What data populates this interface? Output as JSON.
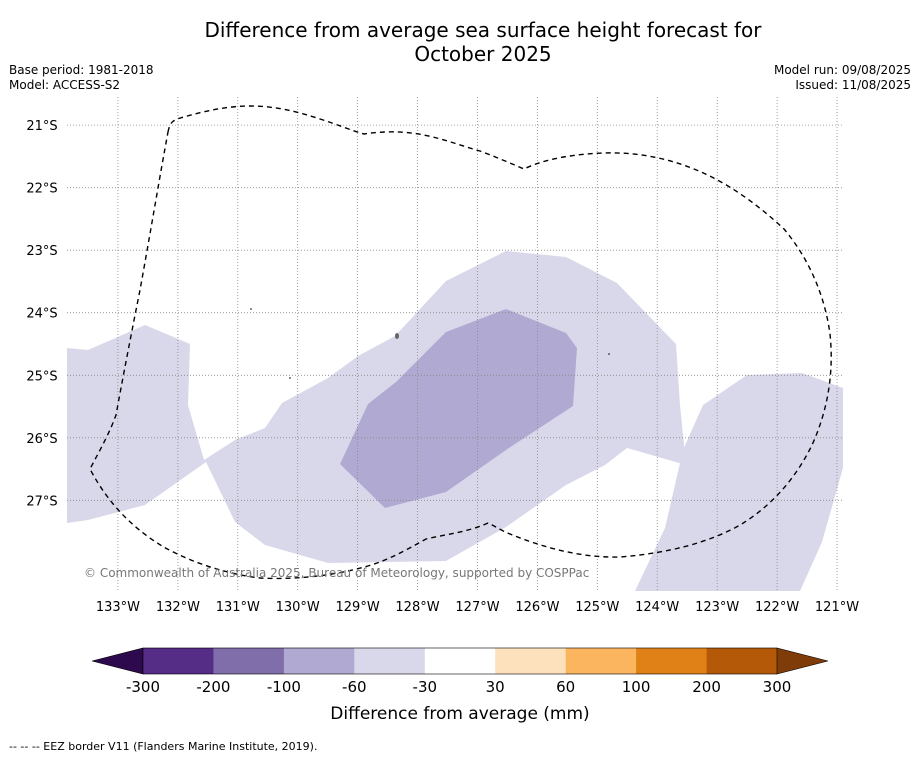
{
  "title": "Difference from average sea surface height forecast for\nOctober 2025",
  "base_period": "Base period: 1981-2018",
  "model": "Model: ACCESS-S2",
  "model_run": "Model run: 09/08/2025",
  "issued": "Issued: 11/08/2025",
  "copyright": "© Commonwealth of Australia 2025, Bureau of Meteorology, supported by COSPPac",
  "footnote": "--  --  -- EEZ border V11 (Flanders Marine Institute, 2019).",
  "map": {
    "lon_range": [
      -133.85,
      -120.9
    ],
    "lat_range": [
      -28.45,
      -20.55
    ],
    "lon_ticks": [
      {
        "value": -133,
        "label": "133°W"
      },
      {
        "value": -132,
        "label": "132°W"
      },
      {
        "value": -131,
        "label": "131°W"
      },
      {
        "value": -130,
        "label": "130°W"
      },
      {
        "value": -129,
        "label": "129°W"
      },
      {
        "value": -128,
        "label": "128°W"
      },
      {
        "value": -127,
        "label": "127°W"
      },
      {
        "value": -126,
        "label": "126°W"
      },
      {
        "value": -125,
        "label": "125°W"
      },
      {
        "value": -124,
        "label": "124°W"
      },
      {
        "value": -123,
        "label": "123°W"
      },
      {
        "value": -122,
        "label": "122°W"
      },
      {
        "value": -121,
        "label": "121°W"
      }
    ],
    "lat_ticks": [
      {
        "value": -21,
        "label": "21°S"
      },
      {
        "value": -22,
        "label": "22°S"
      },
      {
        "value": -23,
        "label": "23°S"
      },
      {
        "value": -24,
        "label": "24°S"
      },
      {
        "value": -25,
        "label": "25°S"
      },
      {
        "value": -26,
        "label": "26°S"
      },
      {
        "value": -27,
        "label": "27°S"
      }
    ],
    "grid": true,
    "colors": {
      "band_light": "#d9d8ea",
      "band_medium": "#b0a9d2",
      "eez_border": "#000000",
      "grid": "#888888"
    }
  },
  "colorbar": {
    "label": "Difference from average (mm)",
    "ticks": [
      "-300",
      "-200",
      "-100",
      "-60",
      "-30",
      "30",
      "60",
      "100",
      "200",
      "300"
    ],
    "colors": [
      "#552c86",
      "#7f6eaa",
      "#b0a9d2",
      "#d9d8ea",
      "#ffffff",
      "#fde1bc",
      "#fbb55f",
      "#e08117",
      "#b35908"
    ],
    "extend_low_color": "#2d0a4e",
    "extend_high_color": "#7f3b08"
  }
}
